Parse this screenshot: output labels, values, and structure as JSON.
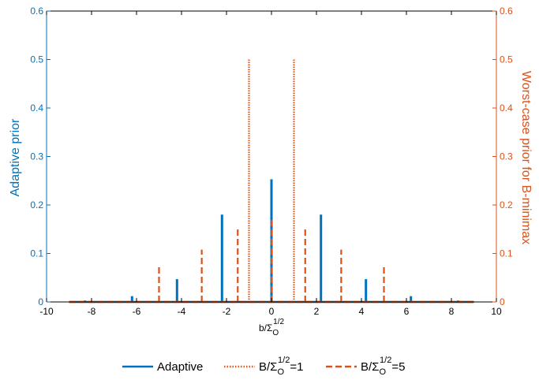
{
  "chart_data": {
    "type": "line",
    "xlabel_main": "b/Σ",
    "xlabel_sub": "O",
    "xlabel_sup": "1/2",
    "ylabel_left": "Adaptive prior",
    "ylabel_right": "Worst-case prior for B-minimax",
    "xlim": [
      -10,
      10
    ],
    "ylim": [
      0,
      0.6
    ],
    "xticks": [
      -10,
      -8,
      -6,
      -4,
      -2,
      0,
      2,
      4,
      6,
      8,
      10
    ],
    "yticks": [
      0,
      0.1,
      0.2,
      0.3,
      0.4,
      0.5,
      0.6
    ],
    "xtick_labels": [
      "-10",
      "-8",
      "-6",
      "-4",
      "-2",
      "0",
      "2",
      "4",
      "6",
      "8",
      "10"
    ],
    "ytick_labels": [
      "0",
      "0.1",
      "0.2",
      "0.3",
      "0.4",
      "0.5",
      "0.6"
    ],
    "grid": false,
    "legend_position": "bottom",
    "series": [
      {
        "name": "Adaptive",
        "axis": "left",
        "color": "#0072BD",
        "style": "solid",
        "baseline": [
          -9,
          9
        ],
        "spikes": [
          {
            "x": -8.3,
            "y": 0.003
          },
          {
            "x": -6.2,
            "y": 0.012
          },
          {
            "x": -4.2,
            "y": 0.047
          },
          {
            "x": -2.2,
            "y": 0.18
          },
          {
            "x": 0,
            "y": 0.253
          },
          {
            "x": 2.2,
            "y": 0.18
          },
          {
            "x": 4.2,
            "y": 0.047
          },
          {
            "x": 6.2,
            "y": 0.012
          },
          {
            "x": 8.3,
            "y": 0.003
          }
        ]
      },
      {
        "name_main": "B/Σ",
        "name_sub": "O",
        "name_sup": "1/2",
        "name_tail": "=1",
        "axis": "right",
        "color": "#D95319",
        "style": "dotted",
        "baseline": [
          -9,
          9
        ],
        "spikes": [
          {
            "x": -1,
            "y": 0.5
          },
          {
            "x": 1,
            "y": 0.5
          }
        ]
      },
      {
        "name_main": "B/Σ",
        "name_sub": "O",
        "name_sup": "1/2",
        "name_tail": "=5",
        "axis": "right",
        "color": "#D95319",
        "style": "dashed",
        "baseline": [
          -9,
          9
        ],
        "spikes": [
          {
            "x": -5,
            "y": 0.075
          },
          {
            "x": -3.1,
            "y": 0.108
          },
          {
            "x": -1.5,
            "y": 0.152
          },
          {
            "x": 0,
            "y": 0.17
          },
          {
            "x": 1.5,
            "y": 0.152
          },
          {
            "x": 3.1,
            "y": 0.108
          },
          {
            "x": 5,
            "y": 0.075
          }
        ]
      }
    ],
    "colors": {
      "left_axis": "#0072BD",
      "right_axis": "#D95319",
      "axis_black": "#000000"
    }
  }
}
